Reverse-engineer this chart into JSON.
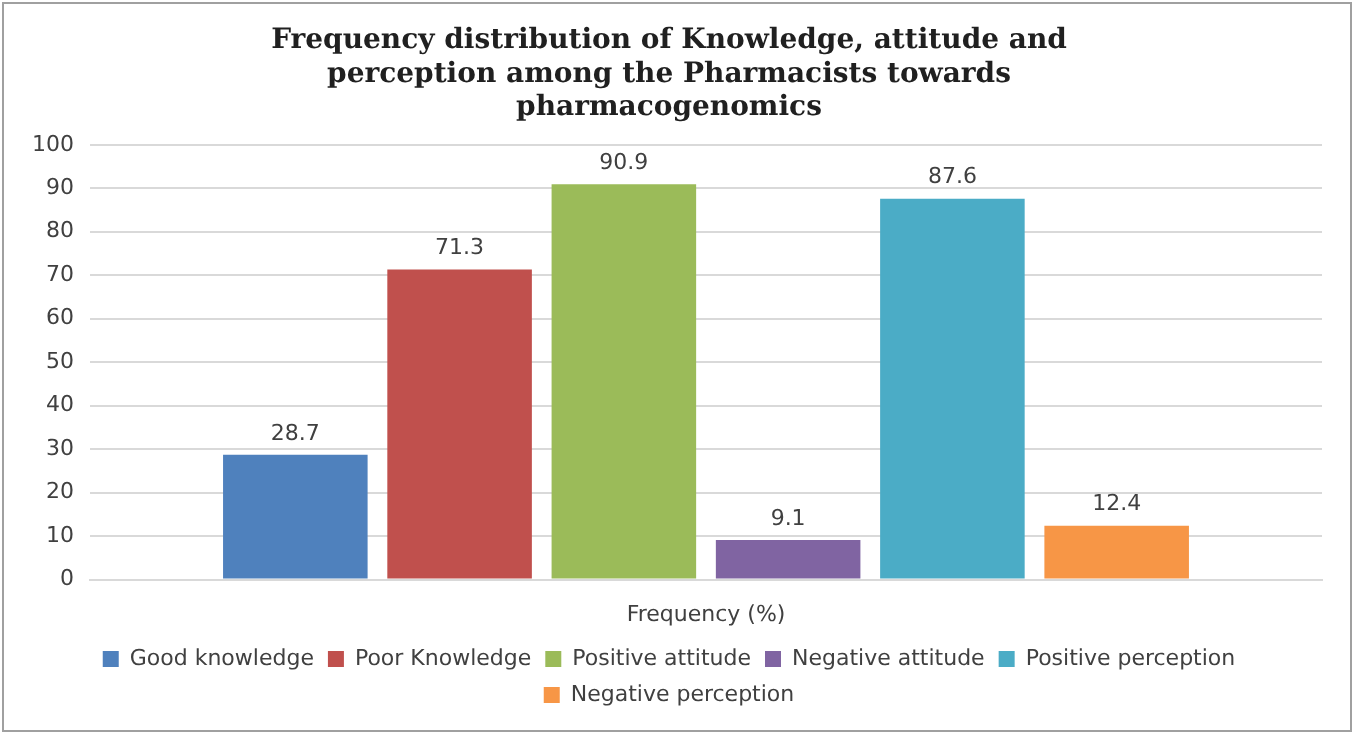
{
  "chart_data": {
    "type": "bar",
    "title": "Frequency distribution of Knowledge, attitude and perception among the Pharmacists towards pharmacogenomics",
    "categories": [
      "Frequency (%)"
    ],
    "series": [
      {
        "name": "Good knowledge",
        "color": "#4f81bd",
        "values": [
          28.7
        ]
      },
      {
        "name": "Poor Knowledge",
        "color": "#c0504d",
        "values": [
          71.3
        ]
      },
      {
        "name": "Positive attitude",
        "color": "#9bbb59",
        "values": [
          90.9
        ]
      },
      {
        "name": "Negative attitude",
        "color": "#8064a2",
        "values": [
          9.1
        ]
      },
      {
        "name": "Positive perception",
        "color": "#4bacc6",
        "values": [
          87.6
        ]
      },
      {
        "name": "Negative perception",
        "color": "#f79646",
        "values": [
          12.4
        ]
      }
    ],
    "ylim": [
      0,
      100
    ],
    "yticks": [
      0,
      10,
      20,
      30,
      40,
      50,
      60,
      70,
      80,
      90,
      100
    ],
    "grid": "y",
    "legend": "bottom",
    "data_labels": true
  }
}
